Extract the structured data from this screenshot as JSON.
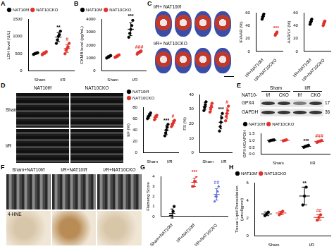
{
  "chart_data": [
    {
      "panel": "A",
      "type": "scatter",
      "y_label": "LDH level (U/L)",
      "categories": [
        "Sham",
        "I/R"
      ],
      "ylim": [
        0,
        1500
      ],
      "yticks": [
        0,
        500,
        1000,
        1500
      ],
      "grid": false,
      "legend": "top-left",
      "series": [
        {
          "name": "NAT10f/f",
          "color": "#000000",
          "marker": "circle",
          "points": [
            [
              480,
              500,
              510,
              520,
              530
            ],
            [
              800,
              900,
              1000,
              1050,
              1150
            ]
          ],
          "mean": [
            508,
            980
          ],
          "error": [
            18,
            130
          ],
          "annotations": [
            null,
            "**"
          ]
        },
        {
          "name": "NAT10CKO",
          "color": "#e0302a",
          "marker": "circle",
          "points": [
            [
              470,
              500,
              520,
              540,
              560
            ],
            [
              500,
              600,
              650,
              700,
              800
            ]
          ],
          "mean": [
            518,
            650
          ],
          "error": [
            35,
            110
          ],
          "annotations": [
            null,
            "#"
          ]
        }
      ]
    },
    {
      "panel": "B",
      "type": "scatter",
      "y_label": "CKMB level (pg/mL)",
      "categories": [
        "Sham",
        "I/R"
      ],
      "ylim": [
        0,
        4000
      ],
      "yticks": [
        0,
        1000,
        2000,
        3000,
        4000
      ],
      "grid": false,
      "legend": "top-left",
      "series": [
        {
          "name": "NAT10f/f",
          "color": "#000000",
          "marker": "circle",
          "points": [
            [
              1000,
              1050,
              1100,
              1150,
              1200
            ],
            [
              2600,
              2900,
              3200,
              3500,
              3900
            ]
          ],
          "mean": [
            1100,
            3220
          ],
          "error": [
            80,
            500
          ],
          "annotations": [
            null,
            "***"
          ]
        },
        {
          "name": "NAT10CKO",
          "color": "#e0302a",
          "marker": "circle",
          "points": [
            [
              1050,
              1100,
              1150,
              1200,
              1250
            ],
            [
              1300,
              1400,
              1450,
              1500,
              1550
            ]
          ],
          "mean": [
            1150,
            1440
          ],
          "error": [
            80,
            90
          ],
          "annotations": [
            null,
            "###"
          ]
        }
      ]
    },
    {
      "panel": "C",
      "type": "scatter",
      "y_label": "IF/AAR (%)",
      "categories": [
        "I/R+NAT10f/f",
        "I/R+NAT10CKO"
      ],
      "ylim": [
        0,
        60
      ],
      "yticks": [
        0,
        20,
        40,
        60
      ],
      "grid": false,
      "image_rows": [
        "I/R+ NAT10f/f",
        "I/R+ NAT10CKO"
      ],
      "series": [
        {
          "color": "#000000",
          "marker": "circle",
          "points": [
            [
              50,
              53,
              55,
              58
            ],
            null
          ],
          "mean": [
            54,
            null
          ],
          "error": [
            3,
            null
          ]
        },
        {
          "color": "#e0302a",
          "marker": "circle",
          "points": [
            null,
            [
              25,
              27,
              28,
              30
            ]
          ],
          "mean": [
            null,
            27.5
          ],
          "error": [
            null,
            2
          ],
          "annotations": [
            null,
            "***"
          ]
        }
      ]
    },
    {
      "type": "scatter",
      "y_label": "AAR/LV (%)",
      "categories": [
        "I/R+NAT10f/f",
        "I/R+NAT10CKO"
      ],
      "ylim": [
        0,
        60
      ],
      "yticks": [
        0,
        20,
        40,
        60
      ],
      "grid": false,
      "series": [
        {
          "color": "#000000",
          "marker": "circle",
          "points": [
            [
              42,
              45,
              47,
              50
            ],
            null
          ],
          "mean": [
            46,
            null
          ],
          "error": [
            3.5,
            null
          ]
        },
        {
          "color": "#e0302a",
          "marker": "circle",
          "points": [
            null,
            [
              40,
              43,
              46,
              47
            ]
          ],
          "mean": [
            null,
            44
          ],
          "error": [
            null,
            3
          ]
        }
      ]
    },
    {
      "panel": "D",
      "type": "scatter",
      "y_label": "EF (%)",
      "categories": [
        "Sham",
        "I/R"
      ],
      "ylim": [
        0,
        80
      ],
      "yticks": [
        0,
        20,
        40,
        60,
        80
      ],
      "grid": false,
      "legend": "top-left",
      "image_columns": [
        "NAT10f/f",
        "NAT10CKO"
      ],
      "image_rows": [
        "Sham",
        "I/R"
      ],
      "series": [
        {
          "name": "NAT10f/f",
          "color": "#000000",
          "marker": "circle",
          "points": [
            [
              60,
              63,
              65,
              67,
              70
            ],
            [
              30,
              35,
              40,
              45,
              50
            ]
          ],
          "mean": [
            65,
            40
          ],
          "error": [
            4,
            8
          ],
          "annotations": [
            null,
            "***"
          ]
        },
        {
          "name": "NAT10CKO",
          "color": "#e0302a",
          "marker": "circle",
          "points": [
            [
              58,
              62,
              64,
              66
            ],
            [
              46,
              50,
              52,
              55,
              57
            ]
          ],
          "mean": [
            62.5,
            52
          ],
          "error": [
            3.5,
            4.5
          ],
          "annotations": [
            null,
            "#"
          ]
        }
      ]
    },
    {
      "type": "scatter",
      "y_label": "FS (%)",
      "categories": [
        "Sham",
        "I/R"
      ],
      "ylim": [
        0,
        40
      ],
      "yticks": [
        0,
        10,
        20,
        30,
        40
      ],
      "grid": false,
      "series": [
        {
          "color": "#000000",
          "marker": "circle",
          "points": [
            [
              29,
              31,
              33,
              35
            ],
            [
              15,
              18,
              21,
              24,
              27
            ]
          ],
          "mean": [
            32,
            21
          ],
          "error": [
            2.5,
            4.5
          ],
          "annotations": [
            null,
            "***"
          ]
        },
        {
          "color": "#e0302a",
          "marker": "circle",
          "points": [
            [
              28,
              30,
              32,
              34
            ],
            [
              22,
              25,
              27,
              29,
              32
            ]
          ],
          "mean": [
            31,
            27
          ],
          "error": [
            2.5,
            3.8
          ],
          "annotations": [
            null,
            "#"
          ]
        }
      ]
    },
    {
      "panel": "E",
      "type": "scatter",
      "y_label": "GPX4/GAPDH",
      "categories": [
        "Sham",
        "I/R"
      ],
      "ylim": [
        0,
        1.5
      ],
      "yticks": [
        {
          "value": 0,
          "label": "0.0"
        },
        0.5,
        {
          "value": 1,
          "label": "1.0"
        },
        1.5
      ],
      "grid": false,
      "legend": "top-left",
      "blot": {
        "groups": [
          "Sham",
          "I/R"
        ],
        "lane_label": "NAT10-",
        "lanes": [
          "f/f",
          "CKO",
          "f/f",
          "CKO"
        ],
        "bands": [
          {
            "name": "GPX4",
            "kda": 17
          },
          {
            "name": "GAPDH",
            "kda": 36
          }
        ]
      },
      "series": [
        {
          "name": "NAT10f/f",
          "color": "#000000",
          "marker": "circle",
          "points": [
            [
              0.95,
              1.0,
              1.02,
              1.03
            ],
            [
              0.5,
              0.55,
              0.6,
              0.65
            ]
          ],
          "mean": [
            1.0,
            0.575
          ],
          "error": [
            0.04,
            0.06
          ],
          "annotations": [
            null,
            "***"
          ]
        },
        {
          "name": "NAT10CKO",
          "color": "#e0302a",
          "marker": "circle",
          "points": [
            [
              0.96,
              1.0,
              1.04
            ],
            [
              0.85,
              0.9,
              0.95,
              1.0
            ]
          ],
          "mean": [
            1.0,
            0.925
          ],
          "error": [
            0.04,
            0.06
          ],
          "annotations": [
            null,
            "###"
          ]
        }
      ]
    },
    {
      "panel": "G",
      "type": "scatter",
      "y_label": "Flameng Score",
      "categories": [
        "Sham+NAT10f/f",
        "I/R+NAT10f/f",
        "I/R+NAT10CKO"
      ],
      "ylim": [
        0,
        4
      ],
      "yticks": [
        0,
        1,
        2,
        3,
        4
      ],
      "grid": false,
      "series": [
        {
          "color": "#000000",
          "marker": "circle",
          "points": [
            [
              0,
              0,
              0,
              0.5,
              1
            ],
            null,
            null
          ],
          "mean": [
            0.3,
            null,
            null
          ],
          "error": [
            0.45,
            null,
            null
          ]
        },
        {
          "color": "#e0302a",
          "marker": "square",
          "points": [
            null,
            [
              3,
              3,
              3.5,
              3.5,
              4
            ],
            null
          ],
          "mean": [
            null,
            3.4,
            null
          ],
          "error": [
            null,
            0.42,
            null
          ],
          "annotations": [
            null,
            "***",
            null
          ]
        },
        {
          "color": "#5b6fd6",
          "marker": "triangle",
          "points": [
            null,
            null,
            [
              1.5,
              2,
              2,
              2.5,
              3
            ]
          ],
          "mean": [
            null,
            null,
            2.2
          ],
          "error": [
            null,
            null,
            0.57
          ],
          "annotations": [
            null,
            null,
            "##"
          ]
        }
      ]
    },
    {
      "panel": "H",
      "type": "scatter",
      "y_label": [
        "Tissue Lipid Peroxidation",
        "(μmol/gprot)"
      ],
      "categories": [
        "Sham",
        "I/R"
      ],
      "ylim": [
        0,
        6
      ],
      "yticks": [
        0,
        2,
        4,
        6
      ],
      "grid": false,
      "legend": "top-left",
      "series": [
        {
          "name": "NAT10f/f",
          "color": "#000000",
          "marker": "circle",
          "points": [
            [
              2.3,
              2.5,
              2.7
            ],
            [
              3.5,
              4.5,
              5.5
            ]
          ],
          "mean": [
            2.5,
            4.5
          ],
          "error": [
            0.2,
            1.0
          ],
          "annotations": [
            null,
            "**"
          ]
        },
        {
          "name": "NAT10CKO",
          "color": "#e0302a",
          "marker": "circle",
          "points": [
            [
              2.4,
              2.6,
              2.8
            ],
            [
              1.8,
              2.1,
              2.4
            ]
          ],
          "mean": [
            2.6,
            2.1
          ],
          "error": [
            0.2,
            0.3
          ],
          "annotations": [
            null,
            "##"
          ]
        }
      ]
    }
  ],
  "panels": [
    {
      "panel": "F",
      "columns": [
        "Sham+NAT10f/f",
        "I/R+NAT10f/f",
        "I/R+NAT10CKO"
      ],
      "stain": "4-HNE"
    }
  ]
}
